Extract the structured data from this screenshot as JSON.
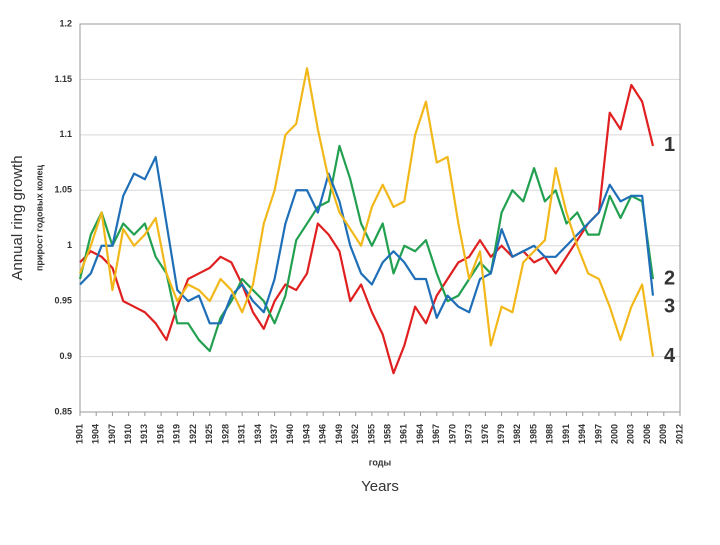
{
  "chart_data": {
    "type": "line",
    "y_label": "прирост годовых колец",
    "x_label": "годы",
    "outer_y_label": "Annual ring growth",
    "outer_x_label": "Years",
    "x": [
      1901,
      1903,
      1905,
      1907,
      1909,
      1911,
      1913,
      1915,
      1917,
      1919,
      1921,
      1923,
      1925,
      1927,
      1929,
      1931,
      1933,
      1935,
      1937,
      1939,
      1941,
      1943,
      1945,
      1947,
      1949,
      1951,
      1953,
      1955,
      1957,
      1959,
      1961,
      1963,
      1965,
      1967,
      1969,
      1971,
      1973,
      1975,
      1977,
      1979,
      1981,
      1983,
      1985,
      1987,
      1989,
      1991,
      1993,
      1995,
      1997,
      1999,
      2001,
      2003,
      2005,
      2007
    ],
    "series": [
      {
        "name": "1",
        "color": "#e02020",
        "values": [
          0.985,
          0.995,
          0.99,
          0.98,
          0.95,
          0.945,
          0.94,
          0.93,
          0.915,
          0.945,
          0.97,
          0.975,
          0.98,
          0.99,
          0.985,
          0.965,
          0.94,
          0.925,
          0.95,
          0.965,
          0.96,
          0.975,
          1.02,
          1.01,
          0.995,
          0.95,
          0.965,
          0.94,
          0.92,
          0.885,
          0.91,
          0.945,
          0.93,
          0.955,
          0.97,
          0.985,
          0.99,
          1.005,
          0.99,
          1.0,
          0.99,
          0.995,
          0.985,
          0.99,
          0.975,
          0.99,
          1.005,
          1.02,
          1.03,
          1.12,
          1.105,
          1.145,
          1.13,
          1.09
        ]
      },
      {
        "name": "2",
        "color": "#22a050",
        "values": [
          0.97,
          1.01,
          1.03,
          1.0,
          1.02,
          1.01,
          1.02,
          0.99,
          0.975,
          0.93,
          0.93,
          0.915,
          0.905,
          0.935,
          0.95,
          0.97,
          0.96,
          0.95,
          0.93,
          0.955,
          1.005,
          1.02,
          1.035,
          1.04,
          1.09,
          1.06,
          1.02,
          1.0,
          1.02,
          0.975,
          1.0,
          0.995,
          1.005,
          0.975,
          0.95,
          0.955,
          0.97,
          0.985,
          0.975,
          1.03,
          1.05,
          1.04,
          1.07,
          1.04,
          1.05,
          1.02,
          1.03,
          1.01,
          1.01,
          1.045,
          1.025,
          1.045,
          1.04,
          0.97
        ]
      },
      {
        "name": "3",
        "color": "#1f6fb8",
        "values": [
          0.965,
          0.975,
          1.0,
          1.0,
          1.045,
          1.065,
          1.06,
          1.08,
          1.02,
          0.96,
          0.95,
          0.955,
          0.93,
          0.93,
          0.955,
          0.965,
          0.95,
          0.94,
          0.97,
          1.02,
          1.05,
          1.05,
          1.03,
          1.065,
          1.04,
          1.0,
          0.975,
          0.965,
          0.985,
          0.995,
          0.985,
          0.97,
          0.97,
          0.935,
          0.955,
          0.945,
          0.94,
          0.97,
          0.975,
          1.015,
          0.99,
          0.995,
          1.0,
          0.99,
          0.99,
          1.0,
          1.01,
          1.02,
          1.03,
          1.055,
          1.04,
          1.045,
          1.045,
          0.955
        ]
      },
      {
        "name": "4",
        "color": "#f2b81a",
        "values": [
          0.975,
          1.0,
          1.03,
          0.96,
          1.015,
          1.0,
          1.01,
          1.025,
          0.975,
          0.95,
          0.965,
          0.96,
          0.95,
          0.97,
          0.96,
          0.94,
          0.965,
          1.02,
          1.05,
          1.1,
          1.11,
          1.16,
          1.105,
          1.06,
          1.03,
          1.015,
          1.0,
          1.035,
          1.055,
          1.035,
          1.04,
          1.1,
          1.13,
          1.075,
          1.08,
          1.02,
          0.97,
          0.995,
          0.91,
          0.945,
          0.94,
          0.985,
          0.995,
          1.005,
          1.07,
          1.03,
          1.0,
          0.975,
          0.97,
          0.945,
          0.915,
          0.945,
          0.965,
          0.9
        ]
      }
    ],
    "xlim": [
      1901,
      2012
    ],
    "xticks": [
      1901,
      1904,
      1907,
      1910,
      1913,
      1916,
      1919,
      1922,
      1925,
      1928,
      1931,
      1934,
      1937,
      1940,
      1943,
      1946,
      1949,
      1952,
      1955,
      1958,
      1961,
      1964,
      1967,
      1970,
      1973,
      1976,
      1979,
      1982,
      1985,
      1988,
      1991,
      1994,
      1997,
      2000,
      2003,
      2006,
      2009,
      2012
    ],
    "ylim": [
      0.85,
      1.2
    ],
    "yticks": [
      0.85,
      0.9,
      0.95,
      1,
      1.05,
      1.1,
      1.15,
      1.2
    ],
    "grid": true
  }
}
